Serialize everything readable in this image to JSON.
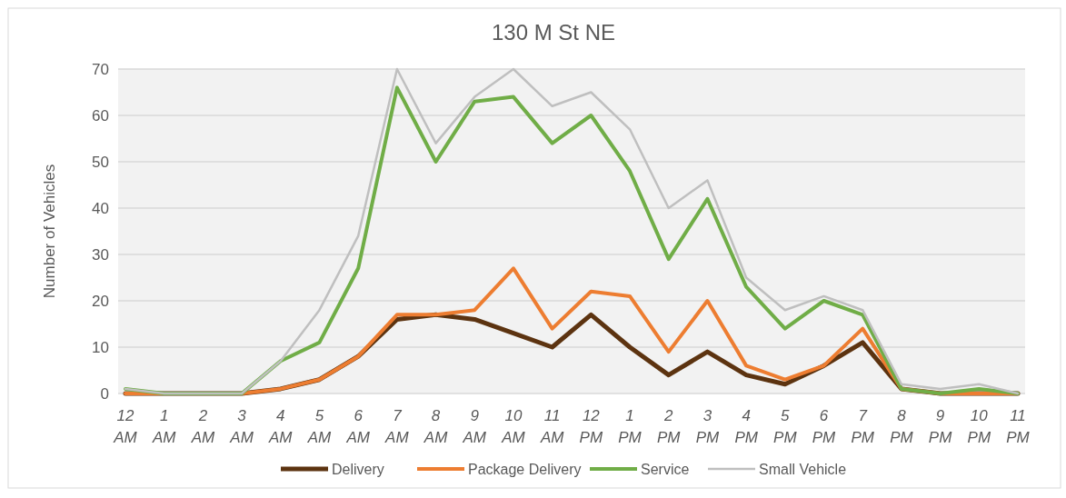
{
  "chart_data": {
    "type": "line",
    "title": "130 M St NE",
    "ylabel": "Number of Vehicles",
    "categories": [
      "12 AM",
      "1 AM",
      "2 AM",
      "3 AM",
      "4 AM",
      "5 AM",
      "6 AM",
      "7 AM",
      "8 AM",
      "9 AM",
      "10 AM",
      "11 AM",
      "12 PM",
      "1 PM",
      "2 PM",
      "3 PM",
      "4 PM",
      "5 PM",
      "6 PM",
      "7 PM",
      "8 PM",
      "9 PM",
      "10 PM",
      "11 PM"
    ],
    "series": [
      {
        "name": "Delivery",
        "color": "#5c3310",
        "values": [
          0,
          0,
          0,
          0,
          1,
          3,
          8,
          16,
          17,
          16,
          13,
          10,
          17,
          10,
          4,
          9,
          4,
          2,
          6,
          11,
          1,
          0,
          0,
          0
        ]
      },
      {
        "name": "Package Delivery",
        "color": "#ed7d31",
        "values": [
          0,
          0,
          0,
          0,
          1,
          3,
          8,
          17,
          17,
          18,
          27,
          14,
          22,
          21,
          9,
          20,
          6,
          3,
          6,
          14,
          1,
          0,
          0,
          0
        ]
      },
      {
        "name": "Service",
        "color": "#70ad47",
        "values": [
          1,
          0,
          0,
          0,
          7,
          11,
          27,
          66,
          50,
          63,
          64,
          54,
          60,
          48,
          29,
          42,
          23,
          14,
          20,
          17,
          1,
          0,
          1,
          0
        ]
      },
      {
        "name": "Small Vehicle",
        "color": "#bfbfbf",
        "values": [
          1,
          0,
          0,
          0,
          7,
          18,
          34,
          70,
          54,
          64,
          70,
          62,
          65,
          57,
          40,
          46,
          25,
          18,
          21,
          18,
          2,
          1,
          2,
          0
        ]
      }
    ],
    "ylim": [
      0,
      70
    ],
    "yticks": [
      0,
      10,
      20,
      30,
      40,
      50,
      60,
      70
    ],
    "grid": "y",
    "legend": "bottom",
    "marker": "none",
    "line_style": "solid"
  }
}
